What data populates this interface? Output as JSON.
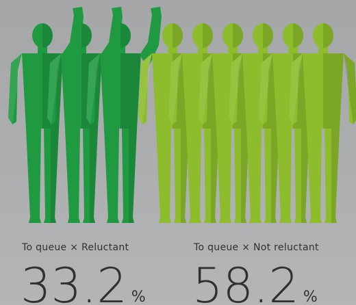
{
  "chart_data": {
    "type": "pictogram",
    "categories": [
      "To queue × Reluctant",
      "To queue × Not reluctant"
    ],
    "values": [
      33.2,
      58.2
    ],
    "unit": "%",
    "icon_counts": [
      3,
      6
    ],
    "colors": [
      "#1f9a40",
      "#8dbd2c"
    ]
  }
}
